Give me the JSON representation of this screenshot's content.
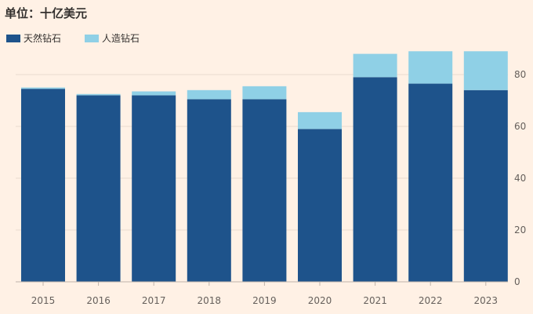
{
  "title": "单位：十亿美元",
  "colors": {
    "background": "#fff1e5",
    "natural": "#1e538b",
    "lab": "#8fd0e6",
    "grid": "#eadcd0",
    "axis": "#bfb4aa",
    "text": "#66605c"
  },
  "chart_data": {
    "type": "bar",
    "stacked": true,
    "title": "单位：十亿美元",
    "categories": [
      "2015",
      "2016",
      "2017",
      "2018",
      "2019",
      "2020",
      "2021",
      "2022",
      "2023"
    ],
    "series": [
      {
        "name": "天然钻石",
        "color": "#1e538b",
        "values": [
          74.5,
          72,
          72,
          70.5,
          70.5,
          59,
          79,
          76.5,
          74
        ]
      },
      {
        "name": "人造钻石",
        "color": "#8fd0e6",
        "values": [
          0.5,
          0.5,
          1.5,
          3.5,
          5,
          6.5,
          9,
          12.5,
          15
        ]
      }
    ],
    "y_ticks": [
      0,
      20,
      40,
      60,
      80
    ],
    "ylim": [
      0,
      90
    ],
    "y_axis_side": "right",
    "grid": true,
    "legend_position": "top-left"
  }
}
